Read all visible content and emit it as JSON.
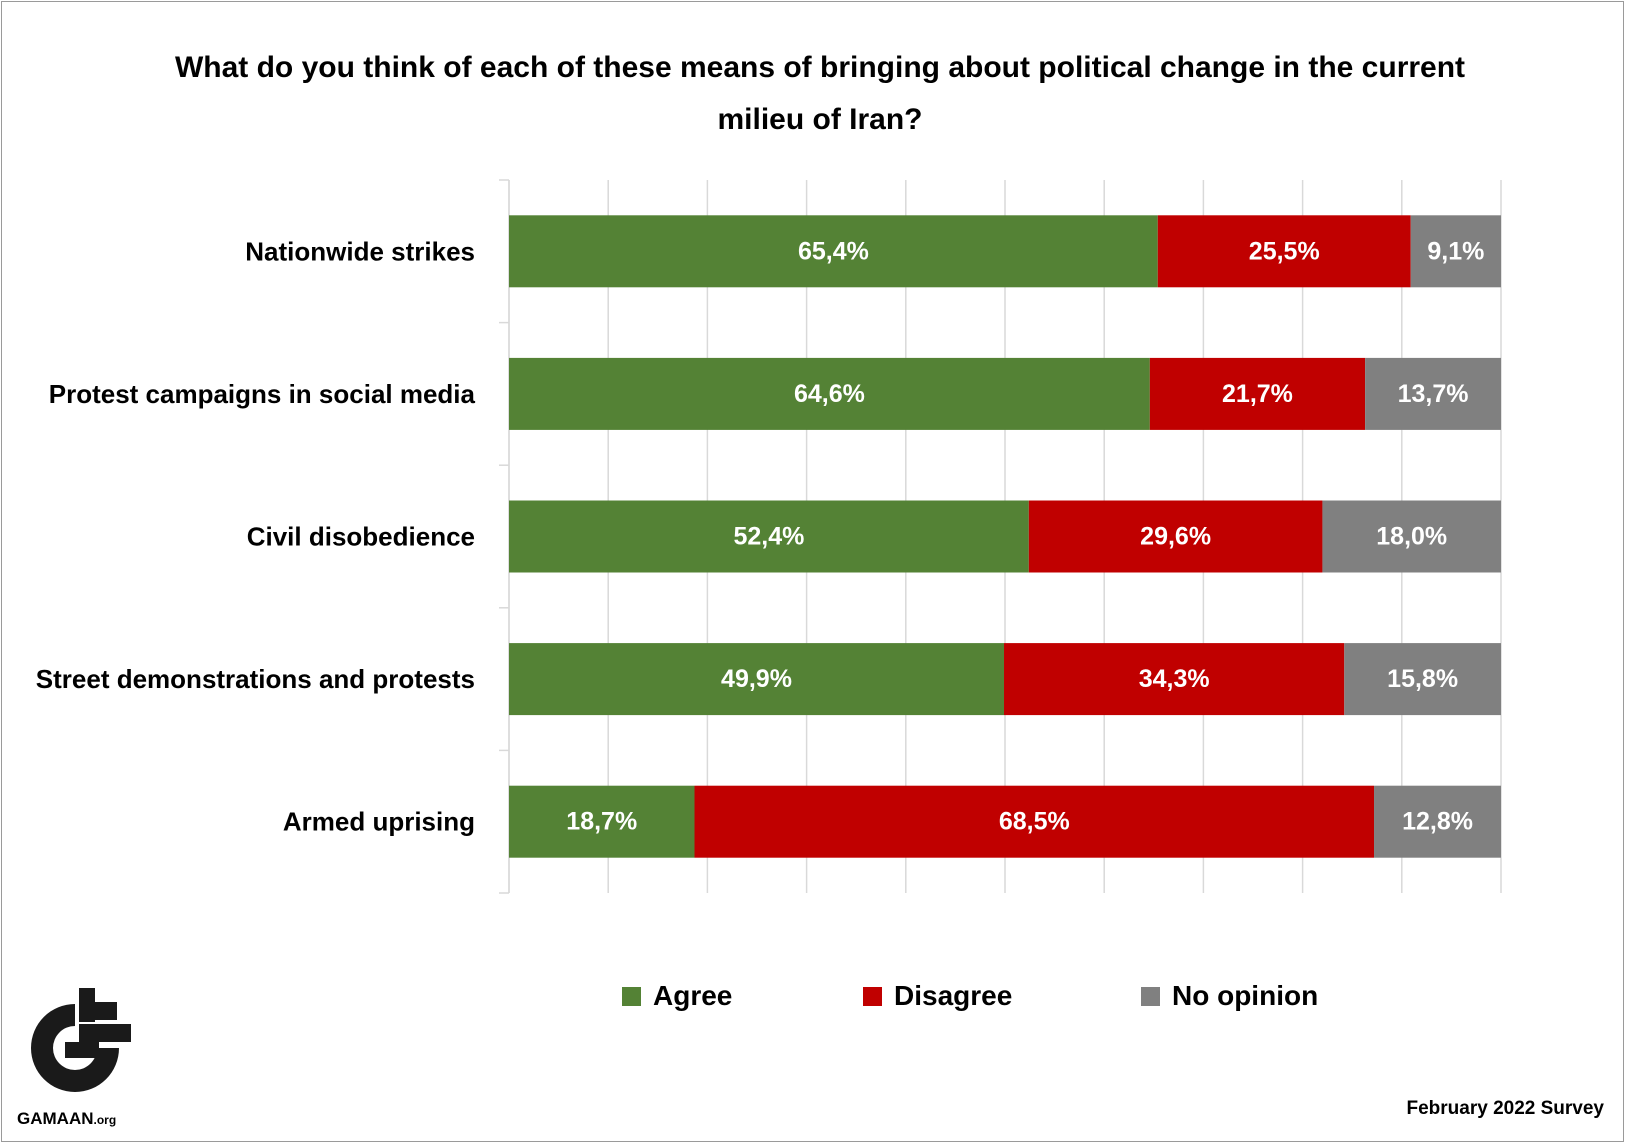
{
  "chart_data": {
    "type": "bar",
    "orientation": "horizontal",
    "stacked": true,
    "title": "What do you think of each of these means of bringing about political change in the current milieu of Iran?",
    "categories": [
      "Nationwide strikes",
      "Protest campaigns in social media",
      "Civil disobedience",
      "Street demonstrations and protests",
      "Armed uprising"
    ],
    "series": [
      {
        "name": "Agree",
        "color": "#548235",
        "values": [
          65.4,
          64.6,
          52.4,
          49.9,
          18.7
        ],
        "labels": [
          "65,4%",
          "64,6%",
          "52,4%",
          "49,9%",
          "18,7%"
        ]
      },
      {
        "name": "Disagree",
        "color": "#c00000",
        "values": [
          25.5,
          21.7,
          29.6,
          34.3,
          68.5
        ],
        "labels": [
          "25,5%",
          "21,7%",
          "29,6%",
          "34,3%",
          "68,5%"
        ]
      },
      {
        "name": "No opinion",
        "color": "#808080",
        "values": [
          9.1,
          13.7,
          18.0,
          15.8,
          12.8
        ],
        "labels": [
          "9,1%",
          "13,7%",
          "18,0%",
          "15,8%",
          "12,8%"
        ]
      }
    ],
    "xlim": [
      0,
      100
    ],
    "grid": true,
    "legend_position": "bottom"
  },
  "logo": {
    "name": "GAMAAN",
    "suffix": ".org"
  },
  "footnote": "February 2022 Survey"
}
